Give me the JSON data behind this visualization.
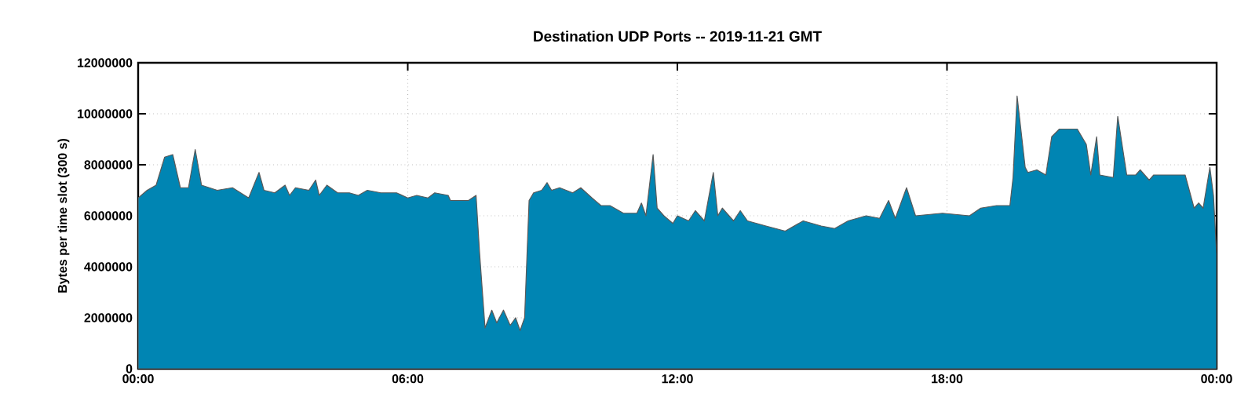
{
  "chart_data": {
    "type": "area",
    "title": "Destination UDP Ports -- 2019-11-21 GMT",
    "ylabel": "Bytes per time slot (300 s)",
    "xlim": [
      0,
      24
    ],
    "ylim": [
      0,
      12000000
    ],
    "xticks": [
      {
        "value": 0,
        "label": "00:00"
      },
      {
        "value": 6,
        "label": "06:00"
      },
      {
        "value": 12,
        "label": "12:00"
      },
      {
        "value": 18,
        "label": "18:00"
      },
      {
        "value": 24,
        "label": "00:00"
      }
    ],
    "yticks": [
      0,
      2000000,
      4000000,
      6000000,
      8000000,
      10000000,
      12000000
    ],
    "grid": true,
    "series": [
      {
        "color": "#0085b3",
        "x": [
          0,
          0.2,
          0.4,
          0.59,
          0.77,
          0.94,
          1.12,
          1.27,
          1.41,
          1.76,
          2.1,
          2.46,
          2.69,
          2.8,
          3.04,
          3.27,
          3.37,
          3.5,
          3.8,
          3.95,
          4.03,
          4.2,
          4.44,
          4.7,
          4.9,
          5.1,
          5.4,
          5.75,
          6.0,
          6.2,
          6.45,
          6.6,
          6.9,
          6.95,
          7.35,
          7.52,
          7.6,
          7.72,
          7.87,
          7.98,
          8.13,
          8.28,
          8.4,
          8.5,
          8.6,
          8.7,
          8.8,
          8.98,
          9.1,
          9.2,
          9.38,
          9.67,
          9.85,
          10.1,
          10.3,
          10.5,
          10.8,
          11.1,
          11.2,
          11.3,
          11.46,
          11.55,
          11.7,
          11.9,
          12.0,
          12.25,
          12.4,
          12.6,
          12.8,
          12.9,
          13.0,
          13.25,
          13.4,
          13.56,
          13.97,
          14.4,
          14.8,
          15.2,
          15.5,
          15.8,
          16.2,
          16.5,
          16.7,
          16.85,
          17.1,
          17.3,
          17.9,
          18.5,
          18.75,
          19.1,
          19.4,
          19.47,
          19.56,
          19.74,
          19.8,
          20.0,
          20.2,
          20.33,
          20.5,
          20.9,
          21.1,
          21.2,
          21.33,
          21.4,
          21.7,
          21.8,
          22.0,
          22.2,
          22.3,
          22.5,
          22.6,
          23.3,
          23.5,
          23.6,
          23.7,
          23.85,
          23.93,
          24
        ],
        "values": [
          6700000,
          7000000,
          7200000,
          8300000,
          8400000,
          7100000,
          7100000,
          8600000,
          7200000,
          7000000,
          7100000,
          6700000,
          7700000,
          7000000,
          6900000,
          7200000,
          6800000,
          7100000,
          7000000,
          7400000,
          6800000,
          7200000,
          6900000,
          6900000,
          6800000,
          7000000,
          6900000,
          6900000,
          6700000,
          6800000,
          6700000,
          6900000,
          6800000,
          6600000,
          6600000,
          6800000,
          4500000,
          1600000,
          2300000,
          1800000,
          2300000,
          1700000,
          2000000,
          1500000,
          2000000,
          6600000,
          6900000,
          7000000,
          7300000,
          7000000,
          7100000,
          6900000,
          7100000,
          6700000,
          6400000,
          6400000,
          6100000,
          6100000,
          6500000,
          6000000,
          8400000,
          6300000,
          6000000,
          5700000,
          6000000,
          5800000,
          6200000,
          5800000,
          7700000,
          6000000,
          6300000,
          5800000,
          6200000,
          5800000,
          5600000,
          5400000,
          5800000,
          5600000,
          5500000,
          5800000,
          6000000,
          5900000,
          6600000,
          5900000,
          7100000,
          6000000,
          6100000,
          6000000,
          6300000,
          6400000,
          6400000,
          7500000,
          10700000,
          7900000,
          7700000,
          7800000,
          7600000,
          9100000,
          9400000,
          9400000,
          8800000,
          7600000,
          9100000,
          7600000,
          7500000,
          9900000,
          7600000,
          7600000,
          7800000,
          7400000,
          7600000,
          7600000,
          6300000,
          6500000,
          6300000,
          7900000,
          6800000,
          4500000
        ]
      }
    ]
  }
}
